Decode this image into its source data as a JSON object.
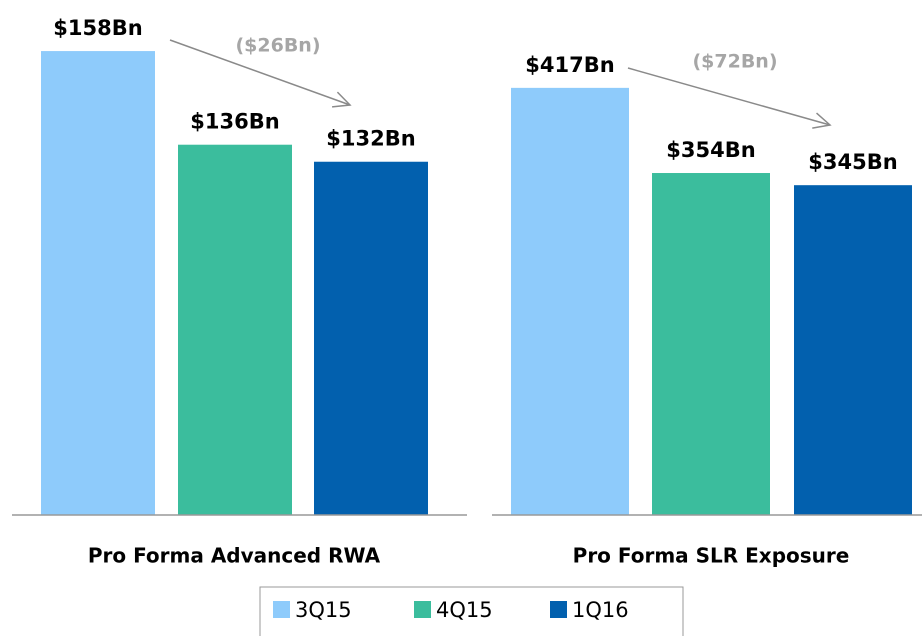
{
  "legend": [
    {
      "name": "3Q15",
      "color": "#8ecbfb"
    },
    {
      "name": "4Q15",
      "color": "#3bbd9d"
    },
    {
      "name": "1Q16",
      "color": "#0260ae"
    }
  ],
  "chart_data": [
    {
      "type": "bar",
      "xlabel": "Pro Forma Advanced RWA",
      "values": [
        158,
        136,
        132
      ],
      "value_labels": [
        "$158Bn",
        "$136Bn",
        "$132Bn"
      ],
      "annotation": "($26Bn)",
      "ylim": [
        49,
        170
      ]
    },
    {
      "type": "bar",
      "xlabel": "Pro Forma SLR Exposure",
      "values": [
        417,
        354,
        345
      ],
      "value_labels": [
        "$417Bn",
        "$354Bn",
        "$345Bn"
      ],
      "annotation": "($72Bn)",
      "ylim": [
        101,
        482
      ]
    }
  ]
}
